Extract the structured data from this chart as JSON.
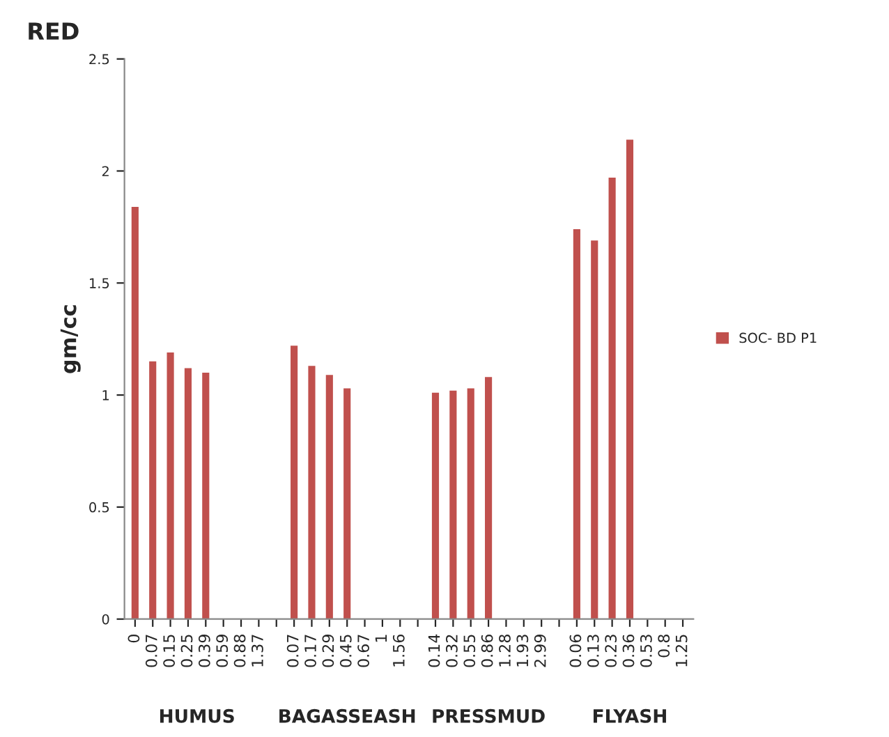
{
  "chart_data": {
    "type": "bar",
    "title": "RED",
    "ylabel": "gm/cc",
    "categories": [
      "0",
      "0.07",
      "0.15",
      "0.25",
      "0.39",
      "0.59",
      "0.88",
      "1.37",
      null,
      "0.07",
      "0.17",
      "0.29",
      "0.45",
      "0.67",
      "1",
      "1.56",
      null,
      "0.14",
      "0.32",
      "0.55",
      "0.86",
      "1.28",
      "1.93",
      "2.99",
      null,
      "0.06",
      "0.13",
      "0.23",
      "0.36",
      "0.53",
      "0.8",
      "1.25"
    ],
    "series": [
      {
        "name": "SOC- BD P1",
        "color": "#c0504d",
        "values": [
          1.84,
          1.15,
          1.19,
          1.12,
          1.1,
          0,
          0,
          0,
          null,
          1.22,
          1.13,
          1.09,
          1.03,
          0,
          0,
          0,
          null,
          1.01,
          1.02,
          1.03,
          1.08,
          0,
          0,
          0,
          null,
          1.74,
          1.69,
          1.97,
          2.14,
          0,
          0,
          0
        ]
      }
    ],
    "annotations": [
      "HUMUS",
      "BAGASSEASH",
      "PRESSMUD",
      "FLYASH"
    ],
    "ylim": [
      0,
      2.5
    ],
    "yticks": [
      0,
      0.5,
      1,
      1.5,
      2,
      2.5
    ],
    "grid": false,
    "legend": "right"
  }
}
